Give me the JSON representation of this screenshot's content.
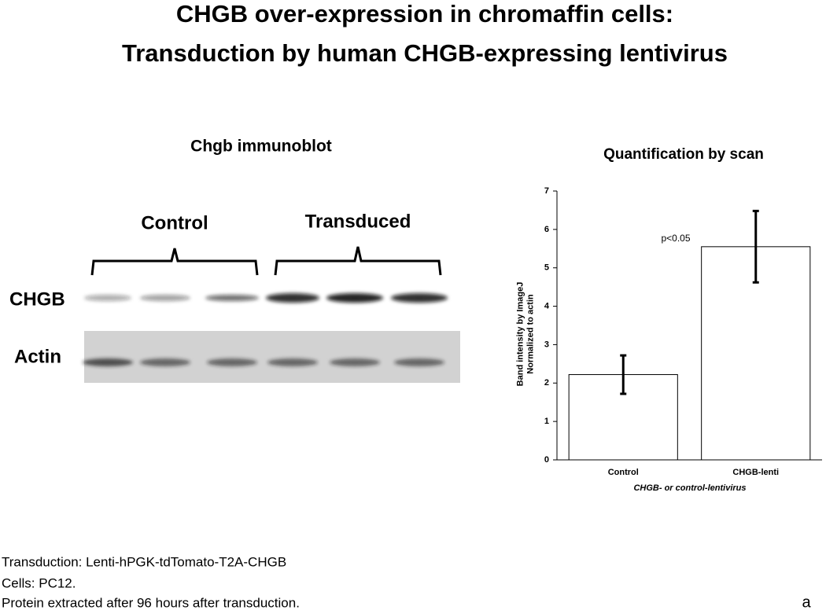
{
  "title": [
    "CHGB over-expression in chromaffin cells:",
    "Transduction by human CHGB-expressing lentivirus"
  ],
  "blot": {
    "title": "Chgb immunoblot",
    "groups": [
      "Control",
      "Transduced"
    ],
    "rows": [
      "CHGB",
      "Actin"
    ]
  },
  "chart_data": {
    "type": "bar",
    "title": "Quantification by scan",
    "categories": [
      "Control",
      "CHGB-lenti"
    ],
    "values": [
      2.22,
      5.55
    ],
    "errors": [
      0.5,
      0.93
    ],
    "color": "#ffffff",
    "ylim": [
      0,
      7
    ],
    "yticks": [
      0,
      1,
      2,
      3,
      4,
      5,
      6,
      7
    ],
    "grid": false,
    "ylabel": [
      "Band intensity by ImageJ",
      "Normalized to actin"
    ],
    "xlabel": "CHGB- or control-lentivirus",
    "annotation": "p<0.05"
  },
  "notes": [
    "Transduction: Lenti-hPGK-tdTomato-T2A-CHGB",
    "Cells: PC12.",
    "Protein extracted after 96 hours after transduction."
  ],
  "panel_label": "a"
}
